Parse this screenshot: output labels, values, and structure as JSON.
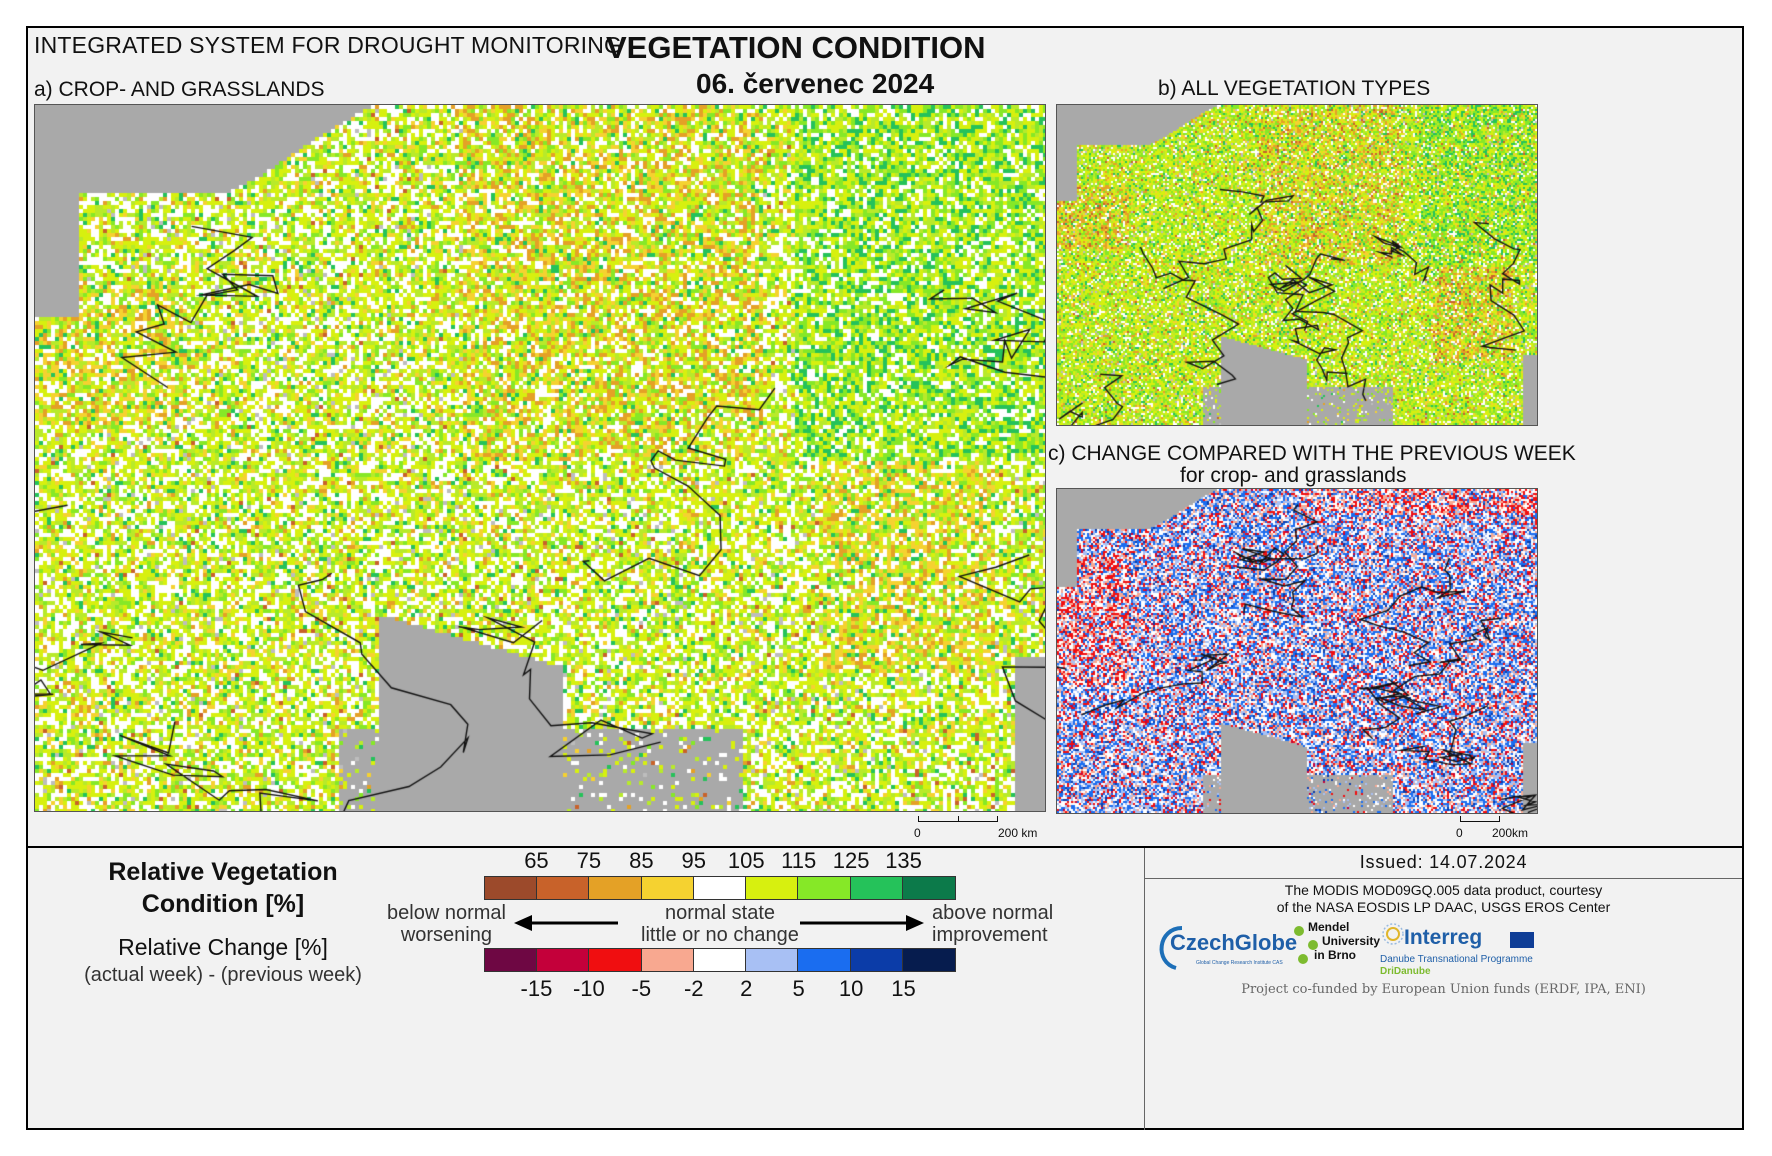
{
  "header": {
    "system_title": "INTEGRATED SYSTEM FOR DROUGHT MONITORING",
    "main_title": "VEGETATION CONDITION",
    "date": "06. červenec 2024"
  },
  "panels": {
    "a_label": "a) CROP- AND GRASSLANDS",
    "b_label": "b) ALL VEGETATION TYPES",
    "c_label": "c) CHANGE COMPARED WITH THE PREVIOUS WEEK",
    "c_sublabel": "for crop- and grasslands"
  },
  "scale": {
    "a": {
      "zero": "0",
      "dist": "200 km"
    },
    "c": {
      "zero": "0",
      "dist": "200km"
    }
  },
  "legend": {
    "rvc_title_line1": "Relative Vegetation",
    "rvc_title_line2": "Condition [%]",
    "rc_title": "Relative Change [%]",
    "rc_subtitle": "(actual week) - (previous week)",
    "top_ticks": [
      "65",
      "75",
      "85",
      "95",
      "105",
      "115",
      "125",
      "135"
    ],
    "bottom_ticks": [
      "-15",
      "-10",
      "-5",
      "-2",
      "2",
      "5",
      "10",
      "15"
    ],
    "left_line1": "below normal",
    "left_line2": "worsening",
    "mid_line1": "normal state",
    "mid_line2": "little or no change",
    "right_line1": "above normal",
    "right_line2": "improvement",
    "top_colors": [
      "#9c4a2b",
      "#c8622a",
      "#e4a126",
      "#f5d230",
      "#ffffff",
      "#d7f00f",
      "#86e827",
      "#25c25a",
      "#0c7a4a"
    ],
    "bottom_colors": [
      "#6e0743",
      "#c4003a",
      "#f00e10",
      "#f8a890",
      "#ffffff",
      "#a8c0f4",
      "#1a6df0",
      "#0b3ca8",
      "#061c4e"
    ]
  },
  "issued": {
    "text": "Issued: 14.07.2024",
    "credit_line1": "The MODIS MOD09GQ.005 data product, courtesy",
    "credit_line2": "of the NASA EOSDIS LP DAAC, USGS EROS Center",
    "funding": "Project co-funded by European Union funds (ERDF, IPA, ENI)"
  },
  "logos": {
    "czechglobe": "CzechGlobe",
    "czechglobe_sub": "Global Change Research Institute CAS",
    "mendel_1": "Mendel",
    "mendel_2": "University",
    "mendel_3": "in Brno",
    "interreg": "Interreg",
    "interreg_sub": "Danube Transnational Programme",
    "dridanube": "DriDanube"
  }
}
